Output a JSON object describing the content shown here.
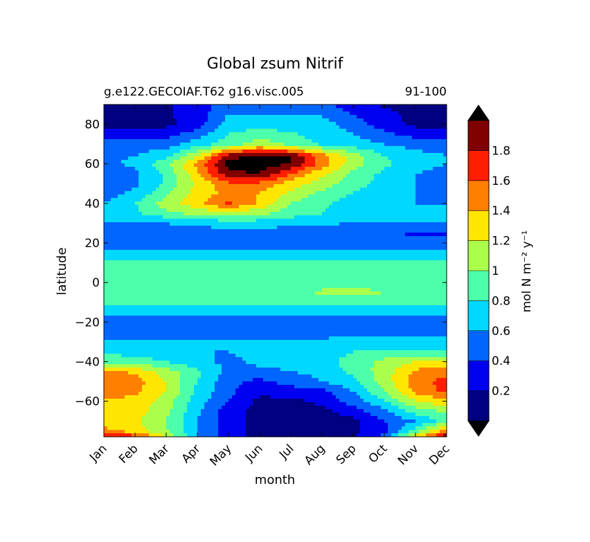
{
  "chart_data": {
    "type": "heatmap",
    "title": "Global zsum Nitrif",
    "subtitle_left": "g.e122.GECOIAF.T62 g16.visc.005",
    "subtitle_right": "91-100",
    "xlabel": "month",
    "ylabel": "latitude",
    "colorbar_label": "mol N m⁻² y⁻¹",
    "x_categories": [
      "Jan",
      "Feb",
      "Mar",
      "Apr",
      "May",
      "Jun",
      "Jul",
      "Aug",
      "Sep",
      "Oct",
      "Nov",
      "Dec"
    ],
    "ylim": [
      -78,
      90
    ],
    "y_ticks": [
      80,
      60,
      40,
      20,
      0,
      -20,
      -40,
      -60
    ],
    "y_tick_labels": [
      "80",
      "60",
      "40",
      "20",
      "0",
      "−20",
      "−40",
      "−60"
    ],
    "levels": [
      0.2,
      0.4,
      0.6,
      0.8,
      1.0,
      1.2,
      1.4,
      1.6,
      1.8
    ],
    "colorbar_tick_labels": [
      "0.2",
      "0.4",
      "0.6",
      "0.8",
      "1",
      "1.2",
      "1.4",
      "1.6",
      "1.8"
    ],
    "extend": "both",
    "colors": [
      "#000080",
      "#0000f0",
      "#0066ff",
      "#00d8ff",
      "#4cffaa",
      "#aaff4c",
      "#ffe600",
      "#ff7f00",
      "#ff1e00",
      "#800000"
    ],
    "over_color": "#000000",
    "under_color": "#000000",
    "grid": false,
    "legend": "colorbar-right",
    "latitudes": [
      90,
      80,
      70,
      64,
      60,
      55,
      50,
      45,
      40,
      35,
      30,
      25,
      20,
      15,
      10,
      5,
      0,
      -5,
      -10,
      -15,
      -20,
      -25,
      -30,
      -35,
      -40,
      -45,
      -50,
      -55,
      -60,
      -65,
      -70,
      -75,
      -78
    ],
    "values": [
      [
        0.15,
        0.15,
        0.18,
        0.3,
        0.5,
        0.5,
        0.5,
        0.45,
        0.3,
        0.18,
        0.15,
        0.15
      ],
      [
        0.15,
        0.15,
        0.15,
        0.3,
        0.7,
        0.7,
        0.7,
        0.7,
        0.5,
        0.3,
        0.15,
        0.15
      ],
      [
        0.45,
        0.5,
        0.5,
        0.7,
        0.9,
        1.1,
        0.95,
        0.75,
        0.7,
        0.6,
        0.5,
        0.45
      ],
      [
        0.55,
        0.6,
        0.75,
        1.2,
        1.9,
        2.1,
        2.0,
        1.5,
        1.1,
        0.8,
        0.7,
        0.6
      ],
      [
        0.55,
        0.65,
        0.95,
        1.45,
        2.1,
        2.1,
        2.0,
        1.5,
        1.1,
        0.85,
        0.7,
        0.6
      ],
      [
        0.45,
        0.55,
        0.85,
        1.35,
        1.95,
        2.0,
        1.6,
        1.25,
        0.95,
        0.75,
        0.6,
        0.5
      ],
      [
        0.5,
        0.55,
        0.85,
        1.25,
        1.55,
        1.55,
        1.3,
        1.1,
        0.9,
        0.7,
        0.6,
        0.55
      ],
      [
        0.5,
        0.65,
        0.95,
        1.3,
        1.45,
        1.4,
        1.15,
        0.95,
        0.8,
        0.65,
        0.6,
        0.55
      ],
      [
        0.6,
        0.8,
        1.1,
        1.35,
        1.65,
        1.35,
        1.0,
        0.85,
        0.7,
        0.65,
        0.6,
        0.6
      ],
      [
        0.65,
        0.75,
        0.95,
        1.05,
        1.15,
        1.05,
        0.9,
        0.8,
        0.7,
        0.65,
        0.65,
        0.65
      ],
      [
        0.6,
        0.6,
        0.6,
        0.65,
        0.7,
        0.7,
        0.65,
        0.62,
        0.6,
        0.6,
        0.6,
        0.6
      ],
      [
        0.5,
        0.5,
        0.5,
        0.5,
        0.5,
        0.5,
        0.5,
        0.5,
        0.5,
        0.45,
        0.35,
        0.35
      ],
      [
        0.5,
        0.5,
        0.5,
        0.5,
        0.5,
        0.5,
        0.5,
        0.5,
        0.5,
        0.5,
        0.5,
        0.5
      ],
      [
        0.62,
        0.62,
        0.62,
        0.62,
        0.62,
        0.62,
        0.62,
        0.62,
        0.62,
        0.62,
        0.62,
        0.62
      ],
      [
        0.82,
        0.82,
        0.82,
        0.82,
        0.82,
        0.82,
        0.82,
        0.82,
        0.82,
        0.82,
        0.82,
        0.82
      ],
      [
        0.85,
        0.85,
        0.85,
        0.85,
        0.85,
        0.85,
        0.85,
        0.85,
        0.85,
        0.85,
        0.85,
        0.85
      ],
      [
        0.9,
        0.88,
        0.88,
        0.88,
        0.88,
        0.88,
        0.88,
        0.88,
        0.9,
        0.88,
        0.85,
        0.85
      ],
      [
        0.85,
        0.85,
        0.85,
        0.85,
        0.85,
        0.85,
        0.9,
        1.05,
        1.1,
        1.0,
        0.85,
        0.82
      ],
      [
        0.82,
        0.82,
        0.82,
        0.82,
        0.82,
        0.82,
        0.82,
        0.82,
        0.82,
        0.82,
        0.82,
        0.82
      ],
      [
        0.7,
        0.7,
        0.7,
        0.7,
        0.7,
        0.7,
        0.7,
        0.7,
        0.7,
        0.7,
        0.7,
        0.7
      ],
      [
        0.5,
        0.5,
        0.5,
        0.5,
        0.5,
        0.5,
        0.5,
        0.5,
        0.5,
        0.5,
        0.5,
        0.5
      ],
      [
        0.5,
        0.5,
        0.5,
        0.5,
        0.5,
        0.5,
        0.5,
        0.5,
        0.5,
        0.5,
        0.5,
        0.5
      ],
      [
        0.65,
        0.65,
        0.65,
        0.65,
        0.65,
        0.65,
        0.65,
        0.65,
        0.7,
        0.7,
        0.7,
        0.7
      ],
      [
        0.75,
        0.7,
        0.65,
        0.6,
        0.6,
        0.65,
        0.65,
        0.7,
        0.8,
        0.85,
        0.8,
        0.8
      ],
      [
        0.95,
        0.9,
        0.8,
        0.65,
        0.55,
        0.65,
        0.65,
        0.7,
        0.9,
        1.05,
        1.2,
        1.2
      ],
      [
        1.5,
        1.35,
        1.1,
        0.85,
        0.55,
        0.55,
        0.6,
        0.65,
        0.85,
        1.1,
        1.45,
        1.5
      ],
      [
        1.5,
        1.5,
        1.2,
        0.8,
        0.45,
        0.35,
        0.5,
        0.6,
        0.75,
        1.1,
        1.5,
        1.7
      ],
      [
        1.5,
        1.45,
        1.2,
        0.75,
        0.45,
        0.25,
        0.3,
        0.35,
        0.6,
        1.0,
        1.45,
        1.65
      ],
      [
        1.35,
        1.35,
        1.1,
        0.7,
        0.4,
        0.15,
        0.15,
        0.25,
        0.5,
        0.8,
        1.2,
        1.35
      ],
      [
        1.3,
        1.3,
        1.05,
        0.65,
        0.3,
        0.1,
        0.1,
        0.15,
        0.3,
        0.55,
        0.9,
        1.05
      ],
      [
        1.3,
        1.25,
        1.0,
        0.6,
        0.3,
        0.1,
        0.1,
        0.1,
        0.15,
        0.4,
        0.6,
        0.9
      ],
      [
        1.45,
        1.3,
        1.0,
        0.6,
        0.3,
        0.1,
        0.1,
        0.1,
        0.15,
        0.35,
        0.9,
        1.5
      ],
      [
        1.85,
        1.7,
        1.2,
        0.6,
        0.3,
        0.15,
        0.15,
        0.15,
        0.2,
        0.45,
        1.3,
        2.0
      ]
    ]
  }
}
